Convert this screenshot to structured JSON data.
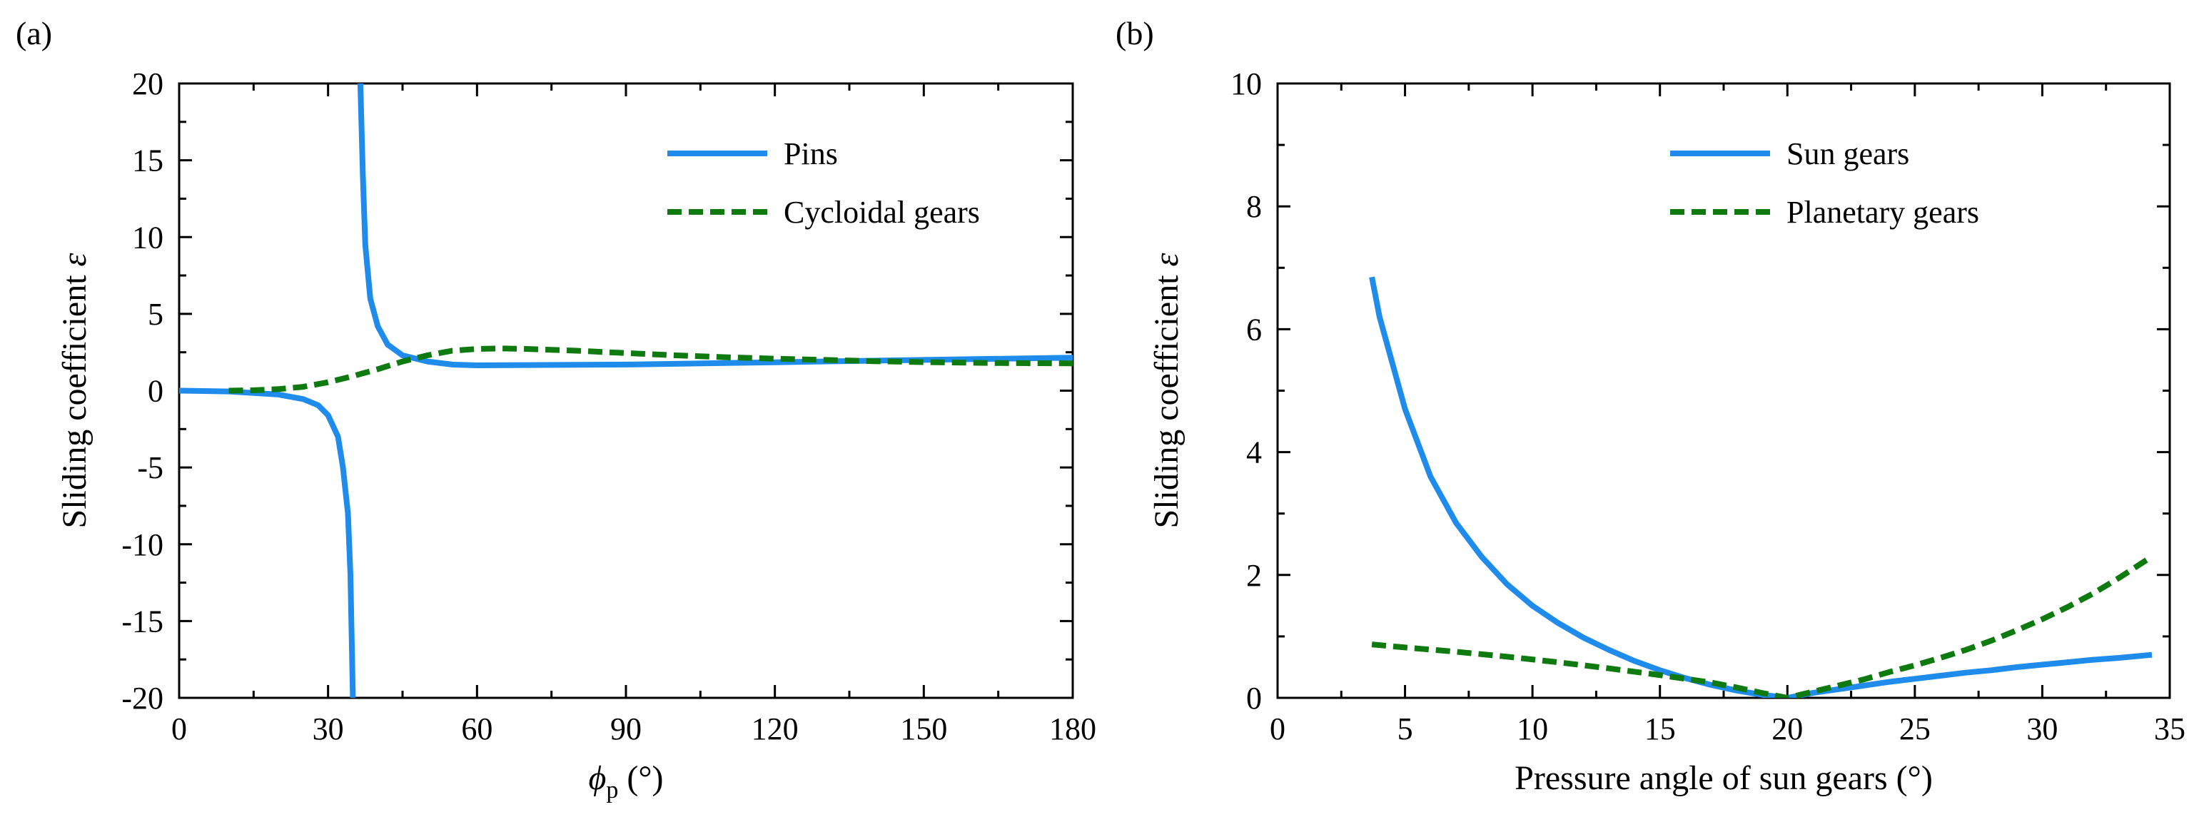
{
  "chart_data": [
    {
      "type": "line",
      "panel_label": "(a)",
      "title": "",
      "xlabel_symbol": "ϕ",
      "xlabel_subscript": "p",
      "xlabel_unit": " (°)",
      "ylabel": "Sliding coefficient ",
      "ylabel_symbol": "ε",
      "xlim": [
        0,
        180
      ],
      "ylim": [
        -20,
        20
      ],
      "x_ticks": [
        0,
        30,
        60,
        90,
        120,
        150,
        180
      ],
      "y_ticks": [
        -20,
        -15,
        -10,
        -5,
        0,
        5,
        10,
        15,
        20
      ],
      "x_tick_labels": [
        "0",
        "30",
        "60",
        "90",
        "120",
        "150",
        "180"
      ],
      "y_tick_labels": [
        "-20",
        "-15",
        "-10",
        "-5",
        "0",
        "5",
        "10",
        "15",
        "20"
      ],
      "legend_position": "top-right",
      "series": [
        {
          "name": "Pins",
          "style": "solid",
          "color": "#1f8ceb",
          "segments": [
            [
              [
                0,
                0
              ],
              [
                10,
                -0.05
              ],
              [
                20,
                -0.25
              ],
              [
                25,
                -0.55
              ],
              [
                28,
                -0.95
              ],
              [
                30,
                -1.6
              ],
              [
                32,
                -3.0
              ],
              [
                33,
                -5.0
              ],
              [
                34,
                -8.0
              ],
              [
                34.5,
                -12.0
              ],
              [
                35,
                -20.0
              ]
            ],
            [
              [
                36.5,
                20.0
              ],
              [
                37,
                14.0
              ],
              [
                37.5,
                9.5
              ],
              [
                38.5,
                6.0
              ],
              [
                40,
                4.2
              ],
              [
                42,
                3.0
              ],
              [
                45,
                2.3
              ],
              [
                50,
                1.9
              ],
              [
                55,
                1.7
              ],
              [
                60,
                1.65
              ],
              [
                90,
                1.7
              ],
              [
                120,
                1.85
              ],
              [
                150,
                2.0
              ],
              [
                180,
                2.15
              ]
            ]
          ]
        },
        {
          "name": "Cycloidal gears",
          "style": "dashed",
          "color": "#0f7a0f",
          "segments": [
            [
              [
                10,
                0
              ],
              [
                15,
                0.03
              ],
              [
                20,
                0.1
              ],
              [
                25,
                0.25
              ],
              [
                30,
                0.55
              ],
              [
                35,
                0.95
              ],
              [
                40,
                1.4
              ],
              [
                45,
                1.9
              ],
              [
                50,
                2.3
              ],
              [
                55,
                2.6
              ],
              [
                60,
                2.72
              ],
              [
                65,
                2.75
              ],
              [
                70,
                2.72
              ],
              [
                80,
                2.6
              ],
              [
                90,
                2.45
              ],
              [
                100,
                2.3
              ],
              [
                110,
                2.18
              ],
              [
                120,
                2.08
              ],
              [
                130,
                2.0
              ],
              [
                140,
                1.92
              ],
              [
                150,
                1.86
              ],
              [
                165,
                1.8
              ],
              [
                180,
                1.78
              ]
            ]
          ]
        }
      ]
    },
    {
      "type": "line",
      "panel_label": "(b)",
      "title": "",
      "xlabel": "Pressure angle of sun gears (°)",
      "ylabel": "Sliding coefficient ",
      "ylabel_symbol": "ε",
      "xlim": [
        0,
        35
      ],
      "ylim": [
        0,
        10
      ],
      "x_ticks": [
        0,
        5,
        10,
        15,
        20,
        25,
        30,
        35
      ],
      "y_ticks": [
        0,
        2,
        4,
        6,
        8,
        10
      ],
      "x_tick_labels": [
        "0",
        "5",
        "10",
        "15",
        "20",
        "25",
        "30",
        "35"
      ],
      "y_tick_labels": [
        "0",
        "2",
        "4",
        "6",
        "8",
        "10"
      ],
      "legend_position": "top-right",
      "series": [
        {
          "name": "Sun gears",
          "style": "solid",
          "color": "#1f8ceb",
          "segments": [
            [
              [
                3.7,
                6.85
              ],
              [
                4,
                6.2
              ],
              [
                5,
                4.7
              ],
              [
                6,
                3.6
              ],
              [
                7,
                2.85
              ],
              [
                8,
                2.3
              ],
              [
                9,
                1.85
              ],
              [
                10,
                1.5
              ],
              [
                11,
                1.22
              ],
              [
                12,
                0.98
              ],
              [
                13,
                0.78
              ],
              [
                14,
                0.6
              ],
              [
                15,
                0.45
              ],
              [
                16,
                0.32
              ],
              [
                17,
                0.21
              ],
              [
                18,
                0.12
              ],
              [
                19,
                0.05
              ],
              [
                20,
                0.0
              ],
              [
                21,
                0.08
              ],
              [
                22,
                0.14
              ],
              [
                23,
                0.2
              ],
              [
                24,
                0.26
              ],
              [
                25,
                0.31
              ],
              [
                26,
                0.36
              ],
              [
                27,
                0.41
              ],
              [
                28,
                0.45
              ],
              [
                29,
                0.5
              ],
              [
                30,
                0.54
              ],
              [
                31,
                0.58
              ],
              [
                32,
                0.62
              ],
              [
                33,
                0.65
              ],
              [
                34.3,
                0.7
              ]
            ]
          ]
        },
        {
          "name": "Planetary gears",
          "style": "dashed",
          "color": "#0f7a0f",
          "segments": [
            [
              [
                3.7,
                0.87
              ],
              [
                5,
                0.82
              ],
              [
                7,
                0.75
              ],
              [
                9,
                0.67
              ],
              [
                11,
                0.58
              ],
              [
                13,
                0.48
              ],
              [
                15,
                0.37
              ],
              [
                17,
                0.25
              ],
              [
                18,
                0.17
              ],
              [
                19,
                0.08
              ],
              [
                20,
                0.0
              ],
              [
                21,
                0.1
              ],
              [
                22,
                0.2
              ],
              [
                23,
                0.3
              ],
              [
                24,
                0.42
              ],
              [
                25,
                0.53
              ],
              [
                26,
                0.65
              ],
              [
                27,
                0.78
              ],
              [
                28,
                0.93
              ],
              [
                29,
                1.1
              ],
              [
                30,
                1.28
              ],
              [
                31,
                1.48
              ],
              [
                32,
                1.7
              ],
              [
                33,
                1.95
              ],
              [
                34.3,
                2.3
              ]
            ]
          ]
        }
      ]
    }
  ]
}
